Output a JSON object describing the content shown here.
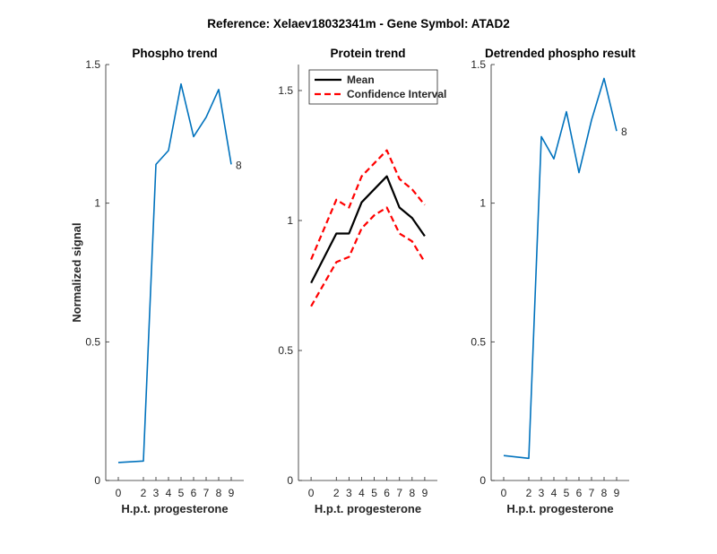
{
  "suptitle": "Reference:  Xelaev18032341m - Gene Symbol:  ATAD2",
  "chart_data": [
    {
      "type": "line",
      "title": "Phospho trend",
      "xlabel": "H.p.t. progesterone",
      "ylabel": "Normalized signal",
      "x": [
        0,
        2,
        3,
        4,
        5,
        6,
        7,
        8,
        9
      ],
      "x_ticks": [
        "0",
        "2",
        "3",
        "4",
        "5",
        "6",
        "7",
        "8",
        "9"
      ],
      "y_ticks": [
        "0",
        "0.5",
        "1",
        "1.5"
      ],
      "ylim": [
        0,
        1.5
      ],
      "series": [
        {
          "values": [
            0.065,
            0.07,
            1.14,
            1.19,
            1.43,
            1.24,
            1.31,
            1.41,
            1.14
          ],
          "color": "#0072bd",
          "style": "solid"
        }
      ],
      "end_label": "8"
    },
    {
      "type": "line",
      "title": "Protein trend",
      "xlabel": "H.p.t. progesterone",
      "ylabel": "",
      "x": [
        0,
        2,
        3,
        4,
        5,
        6,
        7,
        8,
        9
      ],
      "x_ticks": [
        "0",
        "2",
        "3",
        "4",
        "5",
        "6",
        "7",
        "8",
        "9"
      ],
      "y_ticks": [
        "0",
        "0.5",
        "1",
        "1.5"
      ],
      "ylim": [
        0,
        1.6
      ],
      "legend": {
        "placement": "top-left",
        "entries": [
          "Mean",
          "Confidence Interval"
        ]
      },
      "series": [
        {
          "name": "Mean",
          "values": [
            0.76,
            0.95,
            0.95,
            1.07,
            1.12,
            1.17,
            1.05,
            1.01,
            0.94
          ],
          "color": "#000000",
          "style": "solid"
        },
        {
          "name": "Confidence Interval",
          "values": [
            0.85,
            1.08,
            1.05,
            1.17,
            1.22,
            1.27,
            1.16,
            1.12,
            1.06
          ],
          "color": "#ff0000",
          "style": "dashed"
        },
        {
          "name": "Confidence Interval",
          "values": [
            0.67,
            0.84,
            0.86,
            0.97,
            1.02,
            1.05,
            0.95,
            0.92,
            0.84
          ],
          "color": "#ff0000",
          "style": "dashed"
        }
      ]
    },
    {
      "type": "line",
      "title": "Detrended phospho result",
      "xlabel": "H.p.t. progesterone",
      "ylabel": "",
      "x": [
        0,
        2,
        3,
        4,
        5,
        6,
        7,
        8,
        9
      ],
      "x_ticks": [
        "0",
        "2",
        "3",
        "4",
        "5",
        "6",
        "7",
        "8",
        "9"
      ],
      "y_ticks": [
        "0",
        "0.5",
        "1",
        "1.5"
      ],
      "ylim": [
        0,
        1.5
      ],
      "series": [
        {
          "values": [
            0.09,
            0.08,
            1.24,
            1.16,
            1.33,
            1.11,
            1.3,
            1.45,
            1.26
          ],
          "color": "#0072bd",
          "style": "solid"
        }
      ],
      "end_label": "8"
    }
  ]
}
